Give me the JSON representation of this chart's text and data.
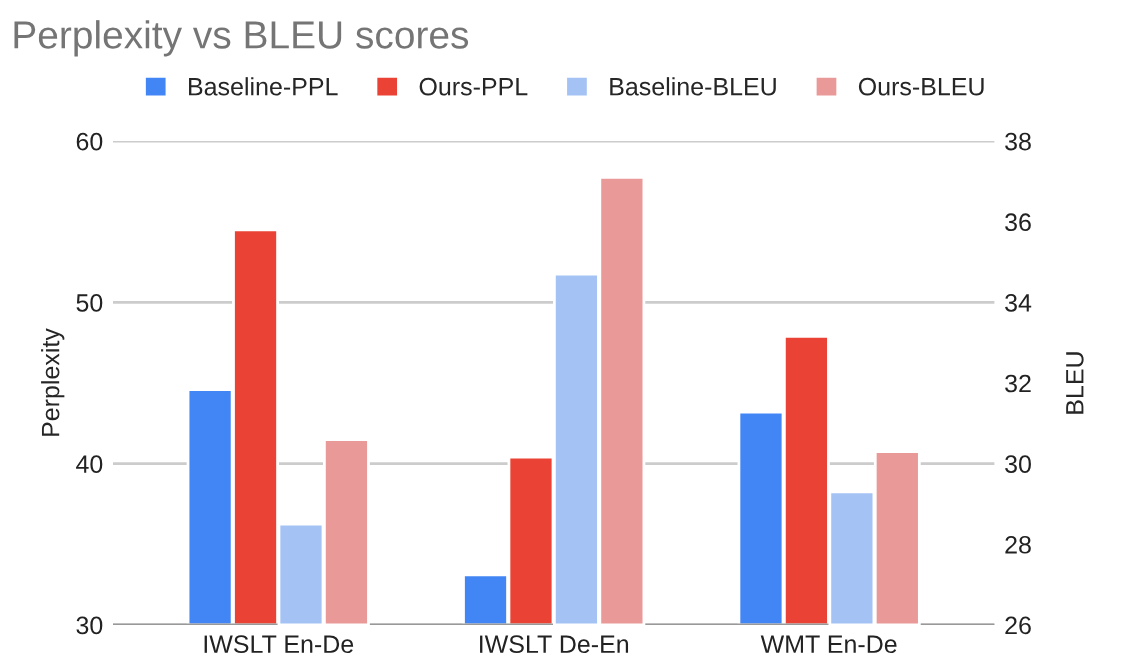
{
  "chart_data": {
    "type": "bar",
    "title": "Perplexity vs BLEU scores",
    "xlabel": null,
    "ylabel": "Perplexity",
    "y2label": "BLEU",
    "categories": [
      "IWSLT En-De",
      "IWSLT De-En",
      "WMT En-De"
    ],
    "series": [
      {
        "name": "Baseline-PPL",
        "color": "#4285f4",
        "values": [
          44.6,
          33.1,
          43.2
        ]
      },
      {
        "name": "Ours-PPL",
        "color": "#ea4335",
        "values": [
          54.5,
          40.4,
          47.9
        ]
      },
      {
        "name": "Baseline-BLEU",
        "color": "#a4c2f4",
        "values": [
          28.5,
          34.7,
          29.3
        ],
        "axis": "y2"
      },
      {
        "name": "Ours-BLEU",
        "color": "#ea9999",
        "values": [
          30.6,
          37.1,
          30.3
        ],
        "axis": "y2"
      }
    ],
    "ylim": [
      30,
      60
    ],
    "yticks": [
      30,
      40,
      50,
      60
    ],
    "y2lim": [
      26,
      38
    ],
    "y2ticks": [
      26,
      28,
      30,
      32,
      34,
      36,
      38
    ],
    "grid": "y",
    "legend": "top"
  }
}
